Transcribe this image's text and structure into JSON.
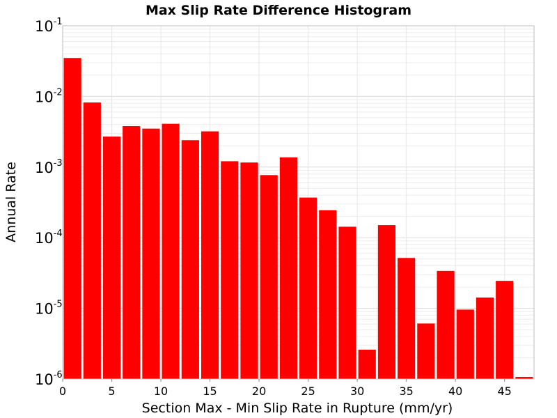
{
  "chart_data": {
    "type": "bar",
    "title": "Max Slip Rate Difference Histogram",
    "xlabel": "Section Max - Min Slip Rate in Rupture (mm/yr)",
    "ylabel": "Annual Rate",
    "xlim": [
      0,
      48
    ],
    "ylim": [
      1e-06,
      0.1
    ],
    "y_scale": "log",
    "grid": true,
    "bar_color": "#ff0000",
    "bin_width": 2,
    "x_ticks": [
      "0",
      "5",
      "10",
      "15",
      "20",
      "25",
      "30",
      "35",
      "40",
      "45"
    ],
    "x_tick_values": [
      0,
      5,
      10,
      15,
      20,
      25,
      30,
      35,
      40,
      45
    ],
    "y_ticks": [
      {
        "base": "10",
        "exp": "-6",
        "value": 1e-06
      },
      {
        "base": "10",
        "exp": "-5",
        "value": 1e-05
      },
      {
        "base": "10",
        "exp": "-4",
        "value": 0.0001
      },
      {
        "base": "10",
        "exp": "-3",
        "value": 0.001
      },
      {
        "base": "10",
        "exp": "-2",
        "value": 0.01
      },
      {
        "base": "10",
        "exp": "-1",
        "value": 0.1
      }
    ],
    "bins": [
      {
        "x": 0,
        "value": 0.035
      },
      {
        "x": 2,
        "value": 0.0082
      },
      {
        "x": 4,
        "value": 0.0027
      },
      {
        "x": 6,
        "value": 0.0038
      },
      {
        "x": 8,
        "value": 0.0035
      },
      {
        "x": 10,
        "value": 0.0041
      },
      {
        "x": 12,
        "value": 0.0024
      },
      {
        "x": 14,
        "value": 0.0032
      },
      {
        "x": 16,
        "value": 0.00121
      },
      {
        "x": 18,
        "value": 0.00116
      },
      {
        "x": 20,
        "value": 0.00077
      },
      {
        "x": 22,
        "value": 0.00137
      },
      {
        "x": 24,
        "value": 0.00037
      },
      {
        "x": 26,
        "value": 0.000245
      },
      {
        "x": 28,
        "value": 0.000143
      },
      {
        "x": 30,
        "value": 2.6e-06
      },
      {
        "x": 32,
        "value": 0.000151
      },
      {
        "x": 34,
        "value": 5.17e-05
      },
      {
        "x": 36,
        "value": 6.1e-06
      },
      {
        "x": 38,
        "value": 3.39e-05
      },
      {
        "x": 40,
        "value": 9.6e-06
      },
      {
        "x": 42,
        "value": 1.42e-05
      },
      {
        "x": 44,
        "value": 2.45e-05
      },
      {
        "x": 46,
        "value": 1.07e-06
      }
    ]
  }
}
